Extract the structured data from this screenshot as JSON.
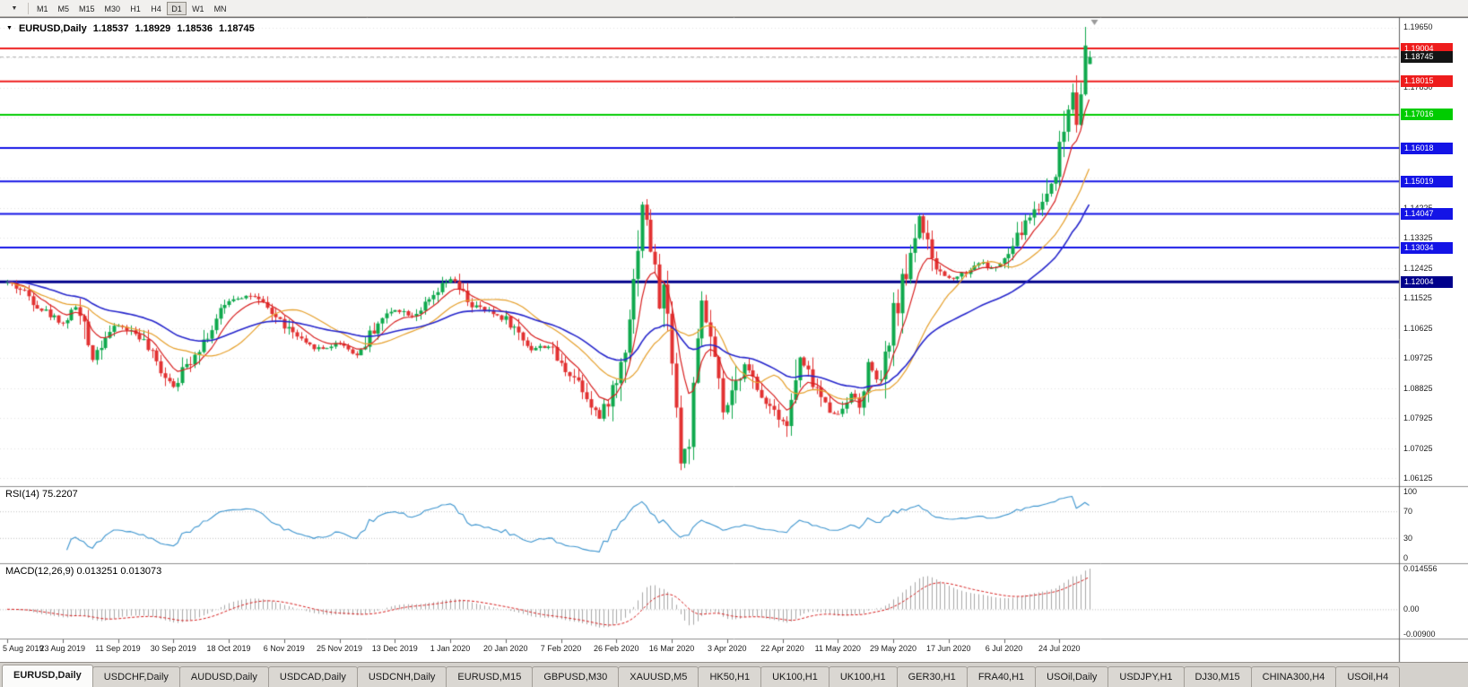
{
  "toolbar": {
    "dropdown_icon": "▼",
    "timeframes": [
      "M1",
      "M5",
      "M15",
      "M30",
      "H1",
      "H4",
      "D1",
      "W1",
      "MN"
    ],
    "active_timeframe": "D1"
  },
  "chart": {
    "collapse_icon": "▼",
    "title": {
      "symbol": "EURUSD,Daily",
      "open": "1.18537",
      "high": "1.18929",
      "low": "1.18536",
      "close": "1.18745"
    }
  },
  "indicators": {
    "rsi_label": "RSI(14) 75.2207",
    "macd_label": "MACD(12,26,9) 0.013251 0.013073"
  },
  "tabs": [
    {
      "label": "EURUSD,Daily",
      "active": true
    },
    {
      "label": "USDCHF,Daily"
    },
    {
      "label": "AUDUSD,Daily"
    },
    {
      "label": "USDCAD,Daily"
    },
    {
      "label": "USDCNH,Daily"
    },
    {
      "label": "EURUSD,M15"
    },
    {
      "label": "GBPUSD,M30"
    },
    {
      "label": "XAUUSD,M5"
    },
    {
      "label": "HK50,H1"
    },
    {
      "label": "UK100,H1"
    },
    {
      "label": "UK100,H1"
    },
    {
      "label": "GER30,H1"
    },
    {
      "label": "FRA40,H1"
    },
    {
      "label": "USOil,Daily"
    },
    {
      "label": "USDJPY,H1"
    },
    {
      "label": "DJ30,M15"
    },
    {
      "label": "CHINA300,H4"
    },
    {
      "label": "USOil,H4"
    }
  ],
  "chart_data": {
    "type": "candlestick",
    "symbol": "EURUSD",
    "timeframe": "Daily",
    "bar_count": 255,
    "price_axis": {
      "min": 1.05883,
      "max": 1.19946,
      "ticks": [
        {
          "label": "1.19650",
          "price": 1.1965
        },
        {
          "label": "1.17850",
          "price": 1.1785
        },
        {
          "label": "1.14225",
          "price": 1.14225
        },
        {
          "label": "1.13325",
          "price": 1.13325
        },
        {
          "label": "1.12425",
          "price": 1.12425
        },
        {
          "label": "1.11525",
          "price": 1.11525
        },
        {
          "label": "1.10625",
          "price": 1.10625
        },
        {
          "label": "1.09725",
          "price": 1.09725
        },
        {
          "label": "1.08825",
          "price": 1.08825
        },
        {
          "label": "1.07925",
          "price": 1.07925
        },
        {
          "label": "1.07025",
          "price": 1.07025
        },
        {
          "label": "1.06125",
          "price": 1.06125
        }
      ]
    },
    "date_labels": [
      {
        "i": 0,
        "label": "5 Aug 2019"
      },
      {
        "i": 13,
        "label": "23 Aug 2019"
      },
      {
        "i": 26,
        "label": "11 Sep 2019"
      },
      {
        "i": 39,
        "label": "30 Sep 2019"
      },
      {
        "i": 52,
        "label": "18 Oct 2019"
      },
      {
        "i": 65,
        "label": "6 Nov 2019"
      },
      {
        "i": 78,
        "label": "25 Nov 2019"
      },
      {
        "i": 91,
        "label": "13 Dec 2019"
      },
      {
        "i": 104,
        "label": "1 Jan 2020"
      },
      {
        "i": 117,
        "label": "20 Jan 2020"
      },
      {
        "i": 130,
        "label": "7 Feb 2020"
      },
      {
        "i": 143,
        "label": "26 Feb 2020"
      },
      {
        "i": 156,
        "label": "16 Mar 2020"
      },
      {
        "i": 169,
        "label": "3 Apr 2020"
      },
      {
        "i": 182,
        "label": "22 Apr 2020"
      },
      {
        "i": 195,
        "label": "11 May 2020"
      },
      {
        "i": 208,
        "label": "29 May 2020"
      },
      {
        "i": 221,
        "label": "17 Jun 2020"
      },
      {
        "i": 234,
        "label": "6 Jul 2020"
      },
      {
        "i": 247,
        "label": "24 Jul 2020"
      }
    ],
    "anchors": [
      [
        0,
        1.12
      ],
      [
        4,
        1.117
      ],
      [
        8,
        1.112
      ],
      [
        13,
        1.1075
      ],
      [
        16,
        1.113
      ],
      [
        20,
        1.0975
      ],
      [
        23,
        1.104
      ],
      [
        26,
        1.107
      ],
      [
        31,
        1.104
      ],
      [
        35,
        1.0955
      ],
      [
        39,
        1.089
      ],
      [
        44,
        1.099
      ],
      [
        48,
        1.106
      ],
      [
        52,
        1.115
      ],
      [
        57,
        1.116
      ],
      [
        61,
        1.112
      ],
      [
        65,
        1.107
      ],
      [
        70,
        1.101
      ],
      [
        74,
        1.1
      ],
      [
        78,
        1.102
      ],
      [
        82,
        1.098
      ],
      [
        87,
        1.108
      ],
      [
        91,
        1.112
      ],
      [
        95,
        1.11
      ],
      [
        99,
        1.114
      ],
      [
        104,
        1.121
      ],
      [
        109,
        1.113
      ],
      [
        113,
        1.111
      ],
      [
        117,
        1.109
      ],
      [
        123,
        1.1
      ],
      [
        127,
        1.101
      ],
      [
        130,
        1.095
      ],
      [
        134,
        1.0905
      ],
      [
        137,
        1.084
      ],
      [
        139,
        1.079
      ],
      [
        141,
        1.085
      ],
      [
        143,
        1.09
      ],
      [
        145,
        1.102
      ],
      [
        147,
        1.12
      ],
      [
        149,
        1.144
      ],
      [
        151,
        1.131
      ],
      [
        153,
        1.114
      ],
      [
        154,
        1.118
      ],
      [
        156,
        1.099
      ],
      [
        158,
        1.066
      ],
      [
        160,
        1.073
      ],
      [
        162,
        1.1
      ],
      [
        163,
        1.114
      ],
      [
        165,
        1.102
      ],
      [
        168,
        1.081
      ],
      [
        170,
        1.085
      ],
      [
        173,
        1.096
      ],
      [
        176,
        1.087
      ],
      [
        180,
        1.082
      ],
      [
        183,
        1.077
      ],
      [
        186,
        1.097
      ],
      [
        189,
        1.09
      ],
      [
        192,
        1.083
      ],
      [
        195,
        1.08
      ],
      [
        198,
        1.087
      ],
      [
        200,
        1.082
      ],
      [
        202,
        1.095
      ],
      [
        205,
        1.089
      ],
      [
        208,
        1.11
      ],
      [
        211,
        1.123
      ],
      [
        214,
        1.14
      ],
      [
        217,
        1.125
      ],
      [
        221,
        1.121
      ],
      [
        225,
        1.123
      ],
      [
        228,
        1.126
      ],
      [
        231,
        1.124
      ],
      [
        234,
        1.126
      ],
      [
        237,
        1.133
      ],
      [
        240,
        1.14
      ],
      [
        243,
        1.144
      ],
      [
        245,
        1.15
      ],
      [
        247,
        1.16
      ],
      [
        249,
        1.172
      ],
      [
        250,
        1.178
      ],
      [
        251,
        1.17
      ],
      [
        252,
        1.178
      ],
      [
        253,
        1.189
      ],
      [
        254,
        1.18745
      ]
    ],
    "spike_high": [
      253,
      1.1965
    ],
    "crash_low": [
      158,
      1.0636
    ],
    "hlines": [
      {
        "price": 1.19004,
        "label": "1.19004",
        "color": "#ee1c1c",
        "width": 2
      },
      {
        "price": 1.18015,
        "label": "1.18015",
        "color": "#ee1c1c",
        "width": 2
      },
      {
        "price": 1.17016,
        "label": "1.17016",
        "color": "#00cc00",
        "width": 2
      },
      {
        "price": 1.16018,
        "label": "1.16018",
        "color": "#1414e6",
        "width": 2
      },
      {
        "price": 1.15019,
        "label": "1.15019",
        "color": "#1414e6",
        "width": 2
      },
      {
        "price": 1.14047,
        "label": "1.14047",
        "color": "#1414e6",
        "width": 2
      },
      {
        "price": 1.13034,
        "label": "1.13034",
        "color": "#1414e6",
        "width": 2
      },
      {
        "price": 1.12004,
        "label": "1.12004",
        "color": "#00008b",
        "width": 3
      }
    ],
    "current_price": {
      "price": 1.18745,
      "label": "1.18745",
      "bg": "#141414",
      "fg": "#ffffff"
    },
    "moving_averages": [
      {
        "type": "ema",
        "period": 8,
        "color": "#d81f1f",
        "width": 1.2
      },
      {
        "type": "sma",
        "period": 20,
        "color": "#e6a02c",
        "width": 1.2
      },
      {
        "type": "ema",
        "period": 40,
        "color": "#2626cc",
        "width": 1.6
      }
    ],
    "rsi": {
      "period": 14,
      "current": 75.2207,
      "range": [
        -8,
        108
      ],
      "levels": [
        70,
        30
      ],
      "color": "#3d95cf",
      "ticks": [
        {
          "label": "100",
          "value": 100
        },
        {
          "label": "70",
          "value": 70
        },
        {
          "label": "30",
          "value": 30
        },
        {
          "label": "0",
          "value": 0
        }
      ]
    },
    "macd": {
      "fast": 12,
      "slow": 26,
      "signal": 9,
      "current_main": 0.013251,
      "current_signal": 0.013073,
      "range": [
        -0.0105,
        0.0165
      ],
      "hist_color": "#a8a8a8",
      "signal_color": "#d81f1f",
      "ticks": [
        {
          "label": "0.014556",
          "value": 0.014556
        },
        {
          "label": "0.00",
          "value": 0
        },
        {
          "label": "-0.00900",
          "value": -0.009
        }
      ]
    },
    "colors": {
      "up": "#0fa94d",
      "down": "#e23131",
      "grid": "#e3e3e3",
      "level": "#c0c0c0",
      "separator": "#8f8f8f",
      "scale_line": "#5f5f5f",
      "bg": "#ffffff",
      "current_line": "#b0b0b0",
      "shift_marker": "#9a9a9a"
    }
  }
}
